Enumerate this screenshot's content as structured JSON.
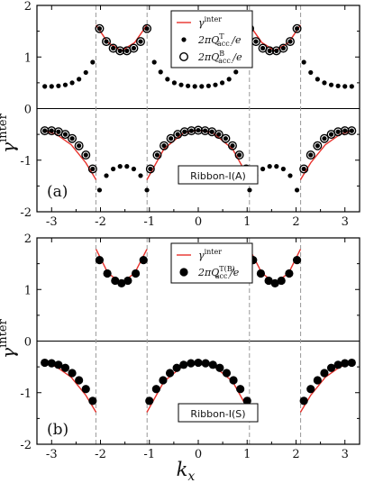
{
  "figure": {
    "xlabel": "k",
    "xlabel_sub": "x",
    "ylabel": "γ",
    "ylabel_sup": "inter"
  },
  "chart_data": [
    {
      "type": "scatter",
      "panel_label": "(a)",
      "box_label": "Ribbon-I(A)",
      "xlim": [
        -3.3,
        3.3
      ],
      "ylim": [
        -2,
        2
      ],
      "xticks": [
        -3,
        -2,
        -1,
        0,
        1,
        2,
        3
      ],
      "yticks": [
        -2,
        -1,
        0,
        1,
        2
      ],
      "grid": false,
      "dashed_vlines": [
        -2.094,
        -1.047,
        1.047,
        2.094
      ],
      "legend_position": "top-center",
      "legend": [
        {
          "marker": "line",
          "text": "γ",
          "sup": "inter",
          "sub": ""
        },
        {
          "marker": "dot",
          "text": "2πQ",
          "sup": "T",
          "sub": "acc.",
          "tail": "/e"
        },
        {
          "marker": "ring",
          "text": "2πQ",
          "sup": "B",
          "sub": "acc.",
          "tail": "/e"
        }
      ],
      "series": [
        {
          "name": "γ",
          "style": "line",
          "color": "#e8302a",
          "segments": [
            {
              "x": [
                -3.14,
                -2.9,
                -2.6,
                -2.3,
                -2.09
              ],
              "y": [
                -0.43,
                -0.5,
                -0.7,
                -1.05,
                -1.38
              ]
            },
            {
              "x": [
                -2.09,
                -1.85,
                -1.57,
                -1.3,
                -1.05
              ],
              "y": [
                1.62,
                1.28,
                1.12,
                1.28,
                1.62
              ]
            },
            {
              "x": [
                -1.05,
                -0.7,
                -0.3,
                0,
                0.3,
                0.7,
                1.05
              ],
              "y": [
                -1.38,
                -0.78,
                -0.47,
                -0.42,
                -0.47,
                -0.78,
                -1.38
              ]
            },
            {
              "x": [
                1.05,
                1.3,
                1.57,
                1.85,
                2.09
              ],
              "y": [
                1.62,
                1.28,
                1.12,
                1.28,
                1.62
              ]
            },
            {
              "x": [
                2.09,
                2.3,
                2.6,
                2.9,
                3.14
              ],
              "y": [
                -1.38,
                -1.05,
                -0.7,
                -0.5,
                -0.43
              ]
            }
          ]
        },
        {
          "name": "2πQT acc./e",
          "style": "dot",
          "color": "#000000",
          "points": [
            [
              -3.14,
              0.43
            ],
            [
              -3.0,
              0.43
            ],
            [
              -2.86,
              0.44
            ],
            [
              -2.72,
              0.46
            ],
            [
              -2.58,
              0.5
            ],
            [
              -2.44,
              0.57
            ],
            [
              -2.3,
              0.7
            ],
            [
              -2.16,
              0.9
            ],
            [
              -2.02,
              -1.58
            ],
            [
              -1.88,
              -1.3
            ],
            [
              -1.74,
              -1.17
            ],
            [
              -1.6,
              -1.12
            ],
            [
              -1.46,
              -1.12
            ],
            [
              -1.32,
              -1.17
            ],
            [
              -1.18,
              -1.3
            ],
            [
              -1.05,
              -1.58
            ],
            [
              -0.9,
              0.9
            ],
            [
              -0.77,
              0.71
            ],
            [
              -0.63,
              0.57
            ],
            [
              -0.49,
              0.5
            ],
            [
              -0.35,
              0.46
            ],
            [
              -0.21,
              0.44
            ],
            [
              -0.07,
              0.43
            ],
            [
              0.07,
              0.43
            ],
            [
              0.21,
              0.44
            ],
            [
              0.35,
              0.46
            ],
            [
              0.49,
              0.5
            ],
            [
              0.63,
              0.57
            ],
            [
              0.77,
              0.71
            ],
            [
              0.9,
              0.9
            ],
            [
              1.05,
              -1.58
            ],
            [
              1.18,
              -1.3
            ],
            [
              1.32,
              -1.17
            ],
            [
              1.46,
              -1.12
            ],
            [
              1.6,
              -1.12
            ],
            [
              1.74,
              -1.17
            ],
            [
              1.88,
              -1.3
            ],
            [
              2.02,
              -1.58
            ],
            [
              2.16,
              0.9
            ],
            [
              2.3,
              0.7
            ],
            [
              2.44,
              0.57
            ],
            [
              2.58,
              0.5
            ],
            [
              2.72,
              0.46
            ],
            [
              2.86,
              0.44
            ],
            [
              3.0,
              0.43
            ],
            [
              3.14,
              0.43
            ],
            [
              -2.02,
              1.55
            ],
            [
              -1.88,
              1.3
            ],
            [
              -1.74,
              1.17
            ],
            [
              -1.6,
              1.12
            ],
            [
              -1.46,
              1.12
            ],
            [
              -1.32,
              1.17
            ],
            [
              -1.18,
              1.3
            ],
            [
              -1.05,
              1.55
            ],
            [
              1.05,
              1.55
            ],
            [
              1.18,
              1.3
            ],
            [
              1.32,
              1.17
            ],
            [
              1.46,
              1.12
            ],
            [
              1.6,
              1.12
            ],
            [
              1.74,
              1.17
            ],
            [
              1.88,
              1.3
            ],
            [
              2.02,
              1.55
            ],
            [
              -3.14,
              -0.43
            ],
            [
              -3.0,
              -0.43
            ],
            [
              -2.86,
              -0.45
            ],
            [
              -2.72,
              -0.5
            ],
            [
              -2.58,
              -0.58
            ],
            [
              -2.44,
              -0.72
            ],
            [
              -2.3,
              -0.9
            ],
            [
              -2.16,
              -1.17
            ],
            [
              -0.98,
              -1.17
            ],
            [
              -0.84,
              -0.9
            ],
            [
              -0.7,
              -0.72
            ],
            [
              -0.56,
              -0.58
            ],
            [
              -0.42,
              -0.5
            ],
            [
              -0.28,
              -0.45
            ],
            [
              -0.14,
              -0.43
            ],
            [
              0.0,
              -0.42
            ],
            [
              0.14,
              -0.43
            ],
            [
              0.28,
              -0.45
            ],
            [
              0.42,
              -0.5
            ],
            [
              0.56,
              -0.58
            ],
            [
              0.7,
              -0.72
            ],
            [
              0.84,
              -0.9
            ],
            [
              0.98,
              -1.17
            ],
            [
              2.16,
              -1.17
            ],
            [
              2.3,
              -0.9
            ],
            [
              2.44,
              -0.72
            ],
            [
              2.58,
              -0.58
            ],
            [
              2.72,
              -0.5
            ],
            [
              2.86,
              -0.45
            ],
            [
              3.0,
              -0.43
            ],
            [
              3.14,
              -0.43
            ]
          ]
        },
        {
          "name": "2πQB acc./e",
          "style": "ring",
          "color": "#000000",
          "points": [
            [
              -2.02,
              1.55
            ],
            [
              -1.88,
              1.3
            ],
            [
              -1.74,
              1.17
            ],
            [
              -1.6,
              1.12
            ],
            [
              -1.46,
              1.12
            ],
            [
              -1.32,
              1.17
            ],
            [
              -1.18,
              1.3
            ],
            [
              -1.05,
              1.55
            ],
            [
              1.05,
              1.55
            ],
            [
              1.18,
              1.3
            ],
            [
              1.32,
              1.17
            ],
            [
              1.46,
              1.12
            ],
            [
              1.6,
              1.12
            ],
            [
              1.74,
              1.17
            ],
            [
              1.88,
              1.3
            ],
            [
              2.02,
              1.55
            ],
            [
              -3.14,
              -0.43
            ],
            [
              -3.0,
              -0.43
            ],
            [
              -2.86,
              -0.45
            ],
            [
              -2.72,
              -0.5
            ],
            [
              -2.58,
              -0.58
            ],
            [
              -2.44,
              -0.72
            ],
            [
              -2.3,
              -0.9
            ],
            [
              -2.16,
              -1.17
            ],
            [
              -0.98,
              -1.17
            ],
            [
              -0.84,
              -0.9
            ],
            [
              -0.7,
              -0.72
            ],
            [
              -0.56,
              -0.58
            ],
            [
              -0.42,
              -0.5
            ],
            [
              -0.28,
              -0.45
            ],
            [
              -0.14,
              -0.43
            ],
            [
              0.0,
              -0.42
            ],
            [
              0.14,
              -0.43
            ],
            [
              0.28,
              -0.45
            ],
            [
              0.42,
              -0.5
            ],
            [
              0.56,
              -0.58
            ],
            [
              0.7,
              -0.72
            ],
            [
              0.84,
              -0.9
            ],
            [
              0.98,
              -1.17
            ],
            [
              2.16,
              -1.17
            ],
            [
              2.3,
              -0.9
            ],
            [
              2.44,
              -0.72
            ],
            [
              2.58,
              -0.58
            ],
            [
              2.72,
              -0.5
            ],
            [
              2.86,
              -0.45
            ],
            [
              3.0,
              -0.43
            ],
            [
              3.14,
              -0.43
            ]
          ]
        }
      ]
    },
    {
      "type": "scatter",
      "panel_label": "(b)",
      "box_label": "Ribbon-I(S)",
      "xlim": [
        -3.3,
        3.3
      ],
      "ylim": [
        -2,
        2
      ],
      "xticks": [
        -3,
        -2,
        -1,
        0,
        1,
        2,
        3
      ],
      "yticks": [
        -2,
        -1,
        0,
        1,
        2
      ],
      "grid": false,
      "dashed_vlines": [
        -2.094,
        -1.047,
        1.047,
        2.094
      ],
      "legend_position": "top-center",
      "legend": [
        {
          "marker": "line",
          "text": "γ",
          "sup": "inter",
          "sub": ""
        },
        {
          "marker": "bigdot",
          "text": "2πQ",
          "sup": "T(B)",
          "sub": "acc.",
          "tail": "/e"
        }
      ],
      "series": [
        {
          "name": "γ",
          "style": "line",
          "color": "#e8302a",
          "segments": [
            {
              "x": [
                -3.14,
                -2.9,
                -2.6,
                -2.3,
                -2.09
              ],
              "y": [
                -0.43,
                -0.5,
                -0.7,
                -1.05,
                -1.38
              ]
            },
            {
              "x": [
                -2.09,
                -1.85,
                -1.57,
                -1.3,
                -1.05
              ],
              "y": [
                1.78,
                1.32,
                1.12,
                1.32,
                1.78
              ]
            },
            {
              "x": [
                -1.05,
                -0.7,
                -0.3,
                0,
                0.3,
                0.7,
                1.05
              ],
              "y": [
                -1.38,
                -0.78,
                -0.47,
                -0.42,
                -0.47,
                -0.78,
                -1.38
              ]
            },
            {
              "x": [
                1.05,
                1.3,
                1.57,
                1.85,
                2.09
              ],
              "y": [
                1.78,
                1.32,
                1.12,
                1.32,
                1.78
              ]
            },
            {
              "x": [
                2.09,
                2.3,
                2.6,
                2.9,
                3.14
              ],
              "y": [
                -1.38,
                -1.05,
                -0.7,
                -0.5,
                -0.43
              ]
            }
          ]
        },
        {
          "name": "2πQT(B) acc./e",
          "style": "bigdot",
          "color": "#000000",
          "points": [
            [
              -2.02,
              1.57
            ],
            [
              -1.86,
              1.31
            ],
            [
              -1.7,
              1.17
            ],
            [
              -1.57,
              1.12
            ],
            [
              -1.44,
              1.17
            ],
            [
              -1.28,
              1.31
            ],
            [
              -1.12,
              1.57
            ],
            [
              1.12,
              1.57
            ],
            [
              1.28,
              1.31
            ],
            [
              1.44,
              1.17
            ],
            [
              1.57,
              1.12
            ],
            [
              1.7,
              1.17
            ],
            [
              1.86,
              1.31
            ],
            [
              2.02,
              1.57
            ],
            [
              -3.14,
              -0.42
            ],
            [
              -3.0,
              -0.43
            ],
            [
              -2.86,
              -0.46
            ],
            [
              -2.72,
              -0.52
            ],
            [
              -2.58,
              -0.62
            ],
            [
              -2.44,
              -0.76
            ],
            [
              -2.3,
              -0.93
            ],
            [
              -2.16,
              -1.16
            ],
            [
              -1.0,
              -1.16
            ],
            [
              -0.86,
              -0.93
            ],
            [
              -0.72,
              -0.76
            ],
            [
              -0.58,
              -0.62
            ],
            [
              -0.44,
              -0.52
            ],
            [
              -0.3,
              -0.46
            ],
            [
              -0.15,
              -0.43
            ],
            [
              0.0,
              -0.42
            ],
            [
              0.15,
              -0.43
            ],
            [
              0.3,
              -0.46
            ],
            [
              0.44,
              -0.52
            ],
            [
              0.58,
              -0.62
            ],
            [
              0.72,
              -0.76
            ],
            [
              0.86,
              -0.93
            ],
            [
              1.0,
              -1.16
            ],
            [
              2.16,
              -1.16
            ],
            [
              2.3,
              -0.93
            ],
            [
              2.44,
              -0.76
            ],
            [
              2.58,
              -0.62
            ],
            [
              2.72,
              -0.52
            ],
            [
              2.86,
              -0.46
            ],
            [
              3.0,
              -0.43
            ],
            [
              3.14,
              -0.42
            ]
          ]
        }
      ]
    }
  ]
}
